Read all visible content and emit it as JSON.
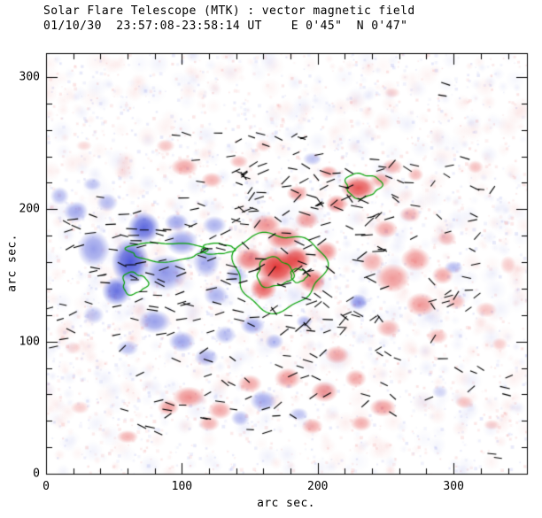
{
  "chart_data": {
    "type": "heatmap",
    "title": "Solar Flare Telescope (MTK) : vector magnetic field",
    "subtitle": "01/10/30  23:57:08-23:58:14 UT    E 0'45\"  N 0'47\"",
    "xlabel": "arc sec.",
    "ylabel": "arc sec.",
    "xlim": [
      0,
      354
    ],
    "ylim": [
      0,
      318
    ],
    "xticks": [
      0,
      100,
      200,
      300
    ],
    "yticks": [
      0,
      100,
      200,
      300
    ],
    "minor_tick": 20,
    "colors": {
      "positive": "#e02626",
      "negative": "#3442d6",
      "contour": "#00a000",
      "vector": "#000000",
      "frame": "#000000",
      "text": "#000000",
      "background": "#ffffff"
    },
    "blobs": [
      [
        62,
        160,
        14,
        18,
        -0.95
      ],
      [
        72,
        186,
        12,
        12,
        -0.85
      ],
      [
        52,
        138,
        11,
        11,
        -0.8
      ],
      [
        88,
        152,
        16,
        14,
        -0.6
      ],
      [
        100,
        175,
        12,
        10,
        -0.55
      ],
      [
        118,
        160,
        10,
        12,
        -0.5
      ],
      [
        35,
        170,
        12,
        14,
        -0.55
      ],
      [
        22,
        198,
        9,
        8,
        -0.5
      ],
      [
        45,
        205,
        8,
        7,
        -0.4
      ],
      [
        80,
        115,
        12,
        9,
        -0.55
      ],
      [
        100,
        100,
        10,
        8,
        -0.5
      ],
      [
        118,
        88,
        9,
        7,
        -0.45
      ],
      [
        132,
        105,
        8,
        7,
        -0.4
      ],
      [
        125,
        135,
        9,
        8,
        -0.45
      ],
      [
        140,
        150,
        8,
        7,
        -0.4
      ],
      [
        152,
        112,
        9,
        7,
        -0.5
      ],
      [
        168,
        100,
        7,
        6,
        -0.4
      ],
      [
        190,
        115,
        6,
        5,
        -0.4
      ],
      [
        230,
        130,
        7,
        6,
        -0.55
      ],
      [
        160,
        55,
        10,
        8,
        -0.5
      ],
      [
        143,
        42,
        7,
        6,
        -0.4
      ],
      [
        186,
        45,
        7,
        5,
        -0.35
      ],
      [
        300,
        156,
        7,
        5,
        -0.4
      ],
      [
        196,
        238,
        7,
        5,
        -0.35
      ],
      [
        10,
        210,
        7,
        7,
        -0.4
      ],
      [
        60,
        95,
        8,
        6,
        -0.35
      ],
      [
        35,
        120,
        8,
        7,
        -0.35
      ],
      [
        290,
        62,
        6,
        5,
        -0.25
      ],
      [
        124,
        188,
        9,
        7,
        -0.45
      ],
      [
        96,
        190,
        9,
        7,
        -0.5
      ],
      [
        34,
        219,
        7,
        5,
        -0.3
      ],
      [
        170,
        156,
        16,
        14,
        1.0
      ],
      [
        184,
        162,
        11,
        10,
        0.9
      ],
      [
        160,
        140,
        10,
        9,
        0.8
      ],
      [
        150,
        162,
        11,
        9,
        0.65
      ],
      [
        175,
        178,
        13,
        9,
        0.65
      ],
      [
        196,
        146,
        10,
        9,
        0.7
      ],
      [
        206,
        168,
        9,
        8,
        0.55
      ],
      [
        162,
        188,
        11,
        8,
        0.55
      ],
      [
        192,
        192,
        9,
        7,
        0.5
      ],
      [
        230,
        216,
        13,
        9,
        0.85
      ],
      [
        214,
        204,
        8,
        7,
        0.6
      ],
      [
        246,
        222,
        8,
        6,
        0.45
      ],
      [
        208,
        228,
        7,
        5,
        0.45
      ],
      [
        185,
        212,
        8,
        6,
        0.5
      ],
      [
        255,
        148,
        13,
        11,
        0.5
      ],
      [
        276,
        128,
        11,
        9,
        0.5
      ],
      [
        272,
        162,
        11,
        9,
        0.5
      ],
      [
        292,
        150,
        8,
        7,
        0.45
      ],
      [
        252,
        110,
        9,
        7,
        0.4
      ],
      [
        288,
        104,
        8,
        6,
        0.35
      ],
      [
        250,
        185,
        9,
        7,
        0.45
      ],
      [
        268,
        196,
        8,
        6,
        0.4
      ],
      [
        295,
        178,
        7,
        6,
        0.35
      ],
      [
        302,
        130,
        7,
        6,
        0.35
      ],
      [
        324,
        124,
        8,
        6,
        0.3
      ],
      [
        334,
        98,
        6,
        5,
        0.25
      ],
      [
        255,
        232,
        8,
        6,
        0.4
      ],
      [
        272,
        226,
        6,
        5,
        0.35
      ],
      [
        316,
        232,
        6,
        5,
        0.3
      ],
      [
        105,
        58,
        12,
        8,
        0.55
      ],
      [
        128,
        48,
        9,
        7,
        0.45
      ],
      [
        150,
        68,
        9,
        7,
        0.45
      ],
      [
        178,
        72,
        10,
        8,
        0.5
      ],
      [
        205,
        62,
        10,
        8,
        0.55
      ],
      [
        228,
        72,
        8,
        7,
        0.45
      ],
      [
        248,
        50,
        10,
        7,
        0.5
      ],
      [
        232,
        38,
        8,
        6,
        0.4
      ],
      [
        196,
        36,
        8,
        6,
        0.4
      ],
      [
        120,
        38,
        8,
        6,
        0.4
      ],
      [
        90,
        50,
        8,
        6,
        0.45
      ],
      [
        60,
        28,
        8,
        5,
        0.4
      ],
      [
        102,
        232,
        10,
        7,
        0.45
      ],
      [
        122,
        222,
        8,
        6,
        0.4
      ],
      [
        142,
        236,
        7,
        5,
        0.35
      ],
      [
        88,
        248,
        7,
        5,
        0.3
      ],
      [
        160,
        248,
        6,
        5,
        0.25
      ],
      [
        20,
        95,
        6,
        5,
        0.2
      ],
      [
        340,
        158,
        6,
        7,
        0.25
      ],
      [
        255,
        288,
        6,
        4,
        0.2
      ],
      [
        214,
        90,
        9,
        7,
        0.45
      ],
      [
        240,
        160,
        9,
        8,
        0.4
      ],
      [
        308,
        54,
        7,
        5,
        0.3
      ],
      [
        328,
        37,
        6,
        4,
        0.25
      ],
      [
        28,
        248,
        6,
        4,
        0.2
      ],
      [
        25,
        50,
        7,
        5,
        0.25
      ]
    ],
    "contours": [
      [
        171,
        154,
        33,
        29,
        0.1,
        0.5
      ],
      [
        168,
        152,
        13,
        11,
        0.12,
        2.1
      ],
      [
        186,
        150,
        6,
        5,
        0.1,
        1.0
      ],
      [
        233,
        218,
        13,
        9,
        0.12,
        0.9
      ],
      [
        65,
        144,
        9,
        8,
        0.15,
        1.4
      ],
      [
        88,
        168,
        28,
        7,
        0.12,
        0.3
      ],
      [
        126,
        170,
        12,
        4,
        0.1,
        2.0
      ]
    ],
    "vector_regions": [
      {
        "x0": 15,
        "x1": 140,
        "y0": 100,
        "y1": 210,
        "count": 85,
        "amin": -30,
        "amax": 30,
        "lmin": 9,
        "lmax": 13
      },
      {
        "x0": 140,
        "x1": 255,
        "y0": 105,
        "y1": 235,
        "count": 115,
        "amin": -55,
        "amax": 55,
        "lmin": 9,
        "lmax": 14
      },
      {
        "x0": 255,
        "x1": 345,
        "y0": 55,
        "y1": 240,
        "count": 45,
        "amin": -60,
        "amax": 60,
        "lmin": 8,
        "lmax": 12
      },
      {
        "x0": 55,
        "x1": 260,
        "y0": 28,
        "y1": 95,
        "count": 50,
        "amin": -45,
        "amax": 45,
        "lmin": 8,
        "lmax": 12
      },
      {
        "x0": 80,
        "x1": 260,
        "y0": 210,
        "y1": 258,
        "count": 30,
        "amin": -35,
        "amax": 35,
        "lmin": 8,
        "lmax": 12
      },
      {
        "x0": 2,
        "x1": 25,
        "y0": 85,
        "y1": 135,
        "count": 6,
        "amin": -30,
        "amax": 30,
        "lmin": 8,
        "lmax": 11
      },
      {
        "x0": 270,
        "x1": 300,
        "y0": 283,
        "y1": 295,
        "count": 2,
        "amin": -20,
        "amax": 20,
        "lmin": 9,
        "lmax": 11
      },
      {
        "x0": 315,
        "x1": 335,
        "y0": 10,
        "y1": 20,
        "count": 2,
        "amin": -20,
        "amax": 20,
        "lmin": 9,
        "lmax": 11
      }
    ],
    "noise": {
      "seed": 7,
      "vector_seed": 99,
      "speckles": 2200,
      "smudges": 900
    }
  }
}
